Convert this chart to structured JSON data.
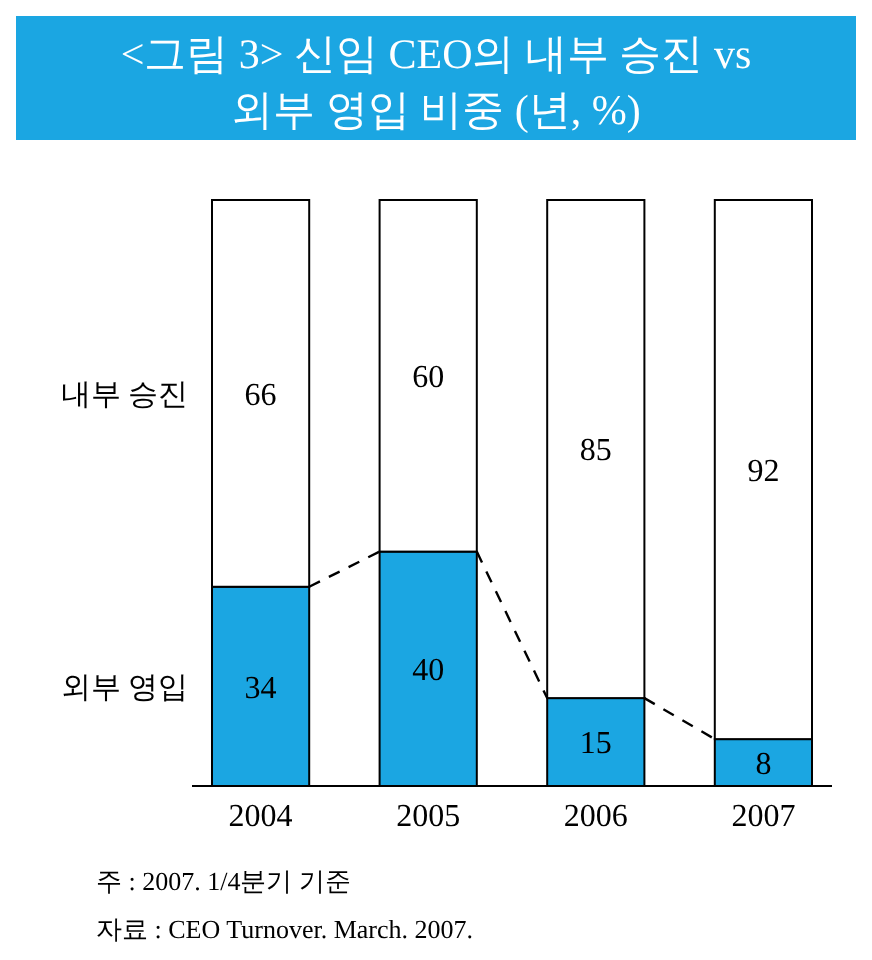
{
  "chart_data": {
    "type": "bar",
    "title": "<그림 3> 신임 CEO의 내부 승진 vs 외부 영입 비중 (년, %)",
    "categories": [
      "2004",
      "2005",
      "2006",
      "2007"
    ],
    "stacked": true,
    "data_labels": true,
    "legend": "left",
    "series": [
      {
        "name": "외부 영입",
        "color": "#1ba6e2",
        "values": [
          34,
          40,
          15,
          8
        ]
      },
      {
        "name": "내부 승진",
        "color": "#ffffff",
        "values": [
          66,
          60,
          85,
          92
        ]
      }
    ],
    "annotations": [
      "주 : 2007. 1/4분기 기준",
      "자료 : CEO Turnover. March. 2007."
    ]
  }
}
